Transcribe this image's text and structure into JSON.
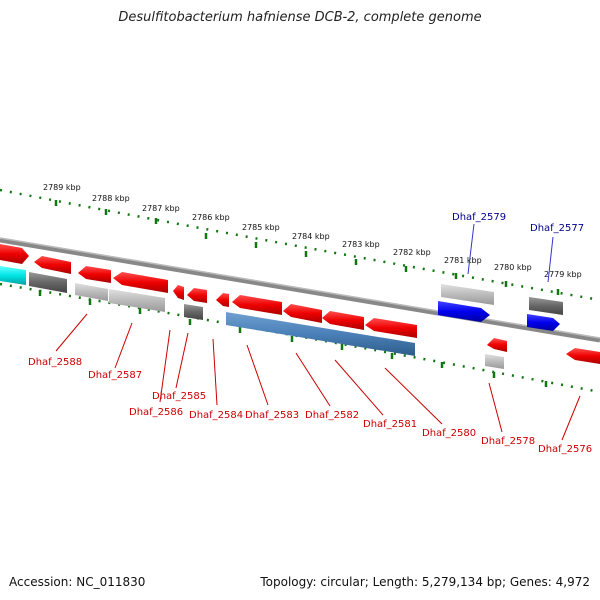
{
  "title": "Desulfitobacterium hafniense DCB-2, complete genome",
  "footer": {
    "accession": "Accession: NC_011830",
    "summary": "Topology: circular; Length: 5,279,134 bp; Genes: 4,972"
  },
  "colors": {
    "forward_gene": "#2222ee",
    "reverse_gene": "#ee1111",
    "rna_gene": "#00e5e5",
    "pseudo_gene": "#707070",
    "backbone": "#888888",
    "tick": "#117711",
    "label_forward": "#00008b",
    "label_reverse": "#cc0000"
  },
  "scale_labels": [
    "2789 kbp",
    "2788 kbp",
    "2787 kbp",
    "2786 kbp",
    "2785 kbp",
    "2784 kbp",
    "2783 kbp",
    "2782 kbp",
    "2781 kbp",
    "2780 kbp",
    "2779 kbp"
  ],
  "gene_labels": {
    "forward": [
      "Dhaf_2579",
      "Dhaf_2577"
    ],
    "reverse": [
      "Dhaf_2588",
      "Dhaf_2587",
      "Dhaf_2585",
      "Dhaf_2586",
      "Dhaf_2584",
      "Dhaf_2583",
      "Dhaf_2582",
      "Dhaf_2581",
      "Dhaf_2580",
      "Dhaf_2578",
      "Dhaf_2576"
    ]
  }
}
